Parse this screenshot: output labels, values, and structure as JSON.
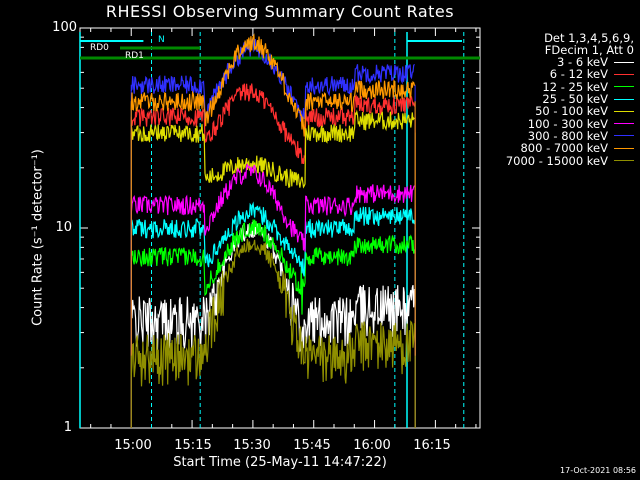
{
  "chart_data": {
    "type": "line",
    "title": "RHESSI Observing Summary Count Rates",
    "ylabel": "Count Rate (s⁻¹ detector⁻¹)",
    "xlabel": "Start Time (25-May-11 14:47:22)",
    "yscale": "log",
    "ylim": [
      1,
      100
    ],
    "xlim_minutes": [
      "14:47:22",
      "16:26"
    ],
    "ytick_labels": [
      "1",
      "10",
      "100"
    ],
    "xtick_labels": [
      "15:00",
      "15:15",
      "15:30",
      "15:45",
      "16:00",
      "16:15"
    ],
    "legend_header": [
      "Det 1,3,4,5,6,9,",
      "FDecim 1, Att 0"
    ],
    "legend_placement": "right",
    "series": [
      {
        "name": "3 - 6 keV",
        "color": "#ffffff",
        "sunlit_x": [
          "15:00",
          "15:18",
          "15:43",
          "16:10"
        ],
        "peak_x": "15:30",
        "level": 3.5,
        "peak": 10
      },
      {
        "name": "6 - 12 keV",
        "color": "#ff3030",
        "sunlit_x": [
          "15:00",
          "15:18",
          "15:43",
          "16:10"
        ],
        "peak_x": "15:29",
        "level": 36,
        "peak": 48
      },
      {
        "name": "12 - 25 keV",
        "color": "#00ff00",
        "sunlit_x": [
          "15:00",
          "15:18",
          "15:43",
          "16:10"
        ],
        "peak_x": "15:30",
        "level": 7.2,
        "peak": 10
      },
      {
        "name": "25 - 50 keV",
        "color": "#00ffff",
        "sunlit_x": [
          "15:00",
          "15:18",
          "15:43",
          "16:10"
        ],
        "peak_x": "15:30",
        "level": 10,
        "peak": 12
      },
      {
        "name": "50 - 100 keV",
        "color": "#dddd00",
        "sunlit_x": [
          "15:00",
          "15:18",
          "15:43",
          "16:10"
        ],
        "peak_x": "15:29",
        "level": 30,
        "peak": 21
      },
      {
        "name": "100 - 300 keV",
        "color": "#ff00ff",
        "sunlit_x": [
          "15:00",
          "15:18",
          "15:43",
          "16:10"
        ],
        "peak_x": "15:29",
        "level": 13,
        "peak": 19
      },
      {
        "name": "300 - 800 keV",
        "color": "#3030ff",
        "sunlit_x": [
          "15:00",
          "15:18",
          "15:43",
          "16:10"
        ],
        "peak_x": "15:30",
        "level": 52,
        "peak": 80
      },
      {
        "name": "800 - 7000 keV",
        "color": "#ff9900",
        "sunlit_x": [
          "15:00",
          "15:18",
          "15:43",
          "16:10"
        ],
        "peak_x": "15:30",
        "level": 43,
        "peak": 84
      },
      {
        "name": "7000 - 15000 keV",
        "color": "#8f8f00",
        "sunlit_x": [
          "15:00",
          "15:18",
          "15:43",
          "16:10"
        ],
        "peak_x": "15:30",
        "level": 2.3,
        "peak": 8.5
      }
    ],
    "annotations": {
      "night_label": "N",
      "rd_labels": [
        "RD0",
        "RD1"
      ]
    },
    "timestamp": "17-Oct-2021 08:56"
  }
}
